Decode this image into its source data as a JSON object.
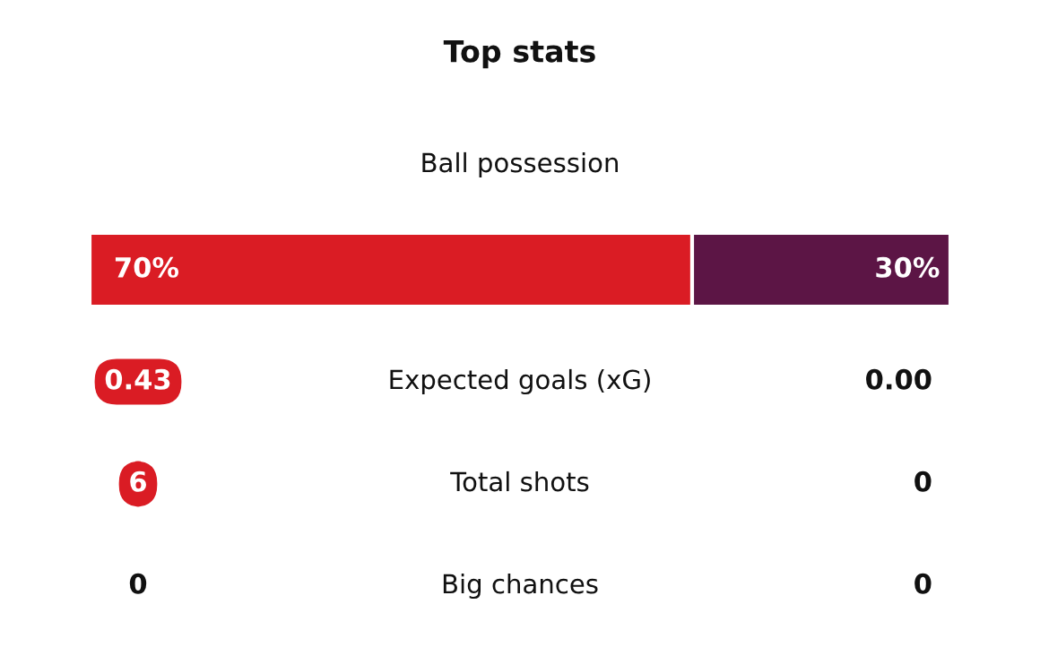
{
  "chart_data": [
    {
      "type": "bar",
      "orientation": "horizontal",
      "stacked": true,
      "title": "Top stats",
      "subtitle": "Ball possession",
      "categories": [
        null
      ],
      "tick_labels": false,
      "series": [
        {
          "color": "#da1c24",
          "values": [
            70
          ],
          "value_labels": [
            "70%"
          ]
        },
        {
          "color": "#5c1545",
          "values": [
            30
          ],
          "value_labels": [
            "30%"
          ]
        }
      ]
    },
    {
      "type": "other",
      "annotations": [
        "0.43",
        "Expected goals (xG)",
        "0.00",
        "6",
        "Total shots",
        "0",
        "0",
        "Big chances",
        "0"
      ]
    }
  ]
}
